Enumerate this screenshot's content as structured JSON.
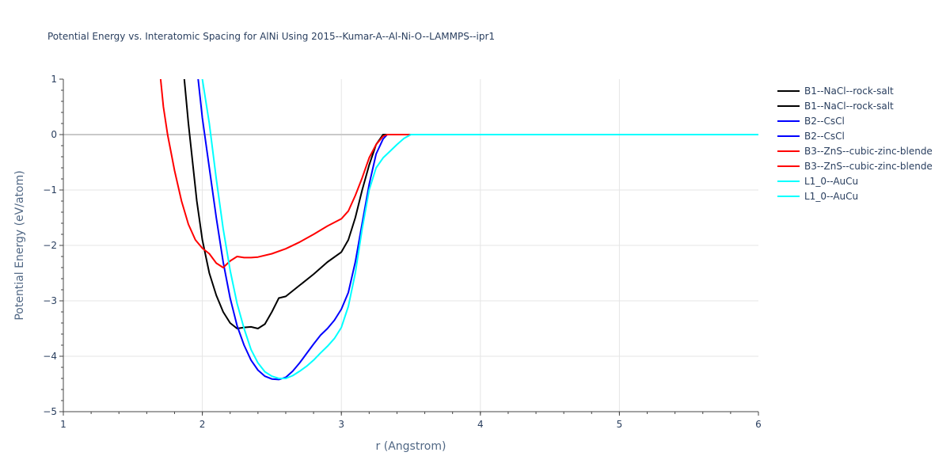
{
  "title": "Potential Energy vs. Interatomic Spacing for AlNi Using 2015--Kumar-A--Al-Ni-O--LAMMPS--ipr1",
  "chart_data": {
    "type": "line",
    "title": "Potential Energy vs. Interatomic Spacing for AlNi Using 2015--Kumar-A--Al-Ni-O--LAMMPS--ipr1",
    "xlabel": "r (Angstrom)",
    "ylabel": "Potential Energy (eV/atom)",
    "xlim": [
      1,
      6
    ],
    "ylim": [
      -5,
      1
    ],
    "xticks": [
      "1",
      "2",
      "3",
      "4",
      "5",
      "6"
    ],
    "yticks": [
      "1",
      "0",
      "−1",
      "−2",
      "−3",
      "−4",
      "−5"
    ],
    "grid": true,
    "legend_position": "right",
    "series": [
      {
        "name": "B1--NaCl--rock-salt",
        "color": "#000000",
        "x": [
          1.87,
          1.9,
          1.93,
          1.96,
          2.0,
          2.05,
          2.1,
          2.15,
          2.2,
          2.25,
          2.3,
          2.35,
          2.4,
          2.45,
          2.5,
          2.55,
          2.6,
          2.7,
          2.8,
          2.9,
          3.0,
          3.05,
          3.1,
          3.15,
          3.2,
          3.25,
          3.3,
          3.33,
          3.35,
          3.4,
          3.5,
          3.6,
          4.0,
          5.0,
          6.0
        ],
        "y": [
          1.0,
          0.2,
          -0.5,
          -1.2,
          -1.9,
          -2.5,
          -2.9,
          -3.2,
          -3.4,
          -3.5,
          -3.48,
          -3.47,
          -3.5,
          -3.42,
          -3.2,
          -2.95,
          -2.92,
          -2.72,
          -2.52,
          -2.3,
          -2.12,
          -1.9,
          -1.5,
          -1.0,
          -0.55,
          -0.18,
          0.0,
          0.0,
          0.0,
          0.0,
          0.0,
          0.0,
          0.0,
          0.0,
          0.0
        ]
      },
      {
        "name": "B2--CsCl",
        "color": "#0000ff",
        "x": [
          1.97,
          2.0,
          2.05,
          2.1,
          2.15,
          2.2,
          2.25,
          2.3,
          2.35,
          2.4,
          2.45,
          2.5,
          2.55,
          2.6,
          2.65,
          2.7,
          2.75,
          2.8,
          2.85,
          2.9,
          2.95,
          3.0,
          3.05,
          3.1,
          3.15,
          3.2,
          3.25,
          3.3,
          3.33,
          3.35,
          3.4,
          3.5,
          4.0,
          5.0,
          6.0
        ],
        "y": [
          1.0,
          0.3,
          -0.6,
          -1.5,
          -2.3,
          -2.95,
          -3.45,
          -3.8,
          -4.07,
          -4.25,
          -4.36,
          -4.41,
          -4.42,
          -4.38,
          -4.27,
          -4.12,
          -3.95,
          -3.78,
          -3.62,
          -3.5,
          -3.35,
          -3.15,
          -2.85,
          -2.3,
          -1.6,
          -0.9,
          -0.35,
          -0.08,
          0.0,
          0.0,
          0.0,
          0.0,
          0.0,
          0.0,
          0.0
        ]
      },
      {
        "name": "B3--ZnS--cubic-zinc-blende",
        "color": "#ff0000",
        "x": [
          1.7,
          1.72,
          1.75,
          1.8,
          1.85,
          1.9,
          1.95,
          2.0,
          2.05,
          2.1,
          2.15,
          2.2,
          2.25,
          2.3,
          2.35,
          2.4,
          2.5,
          2.6,
          2.7,
          2.8,
          2.9,
          3.0,
          3.05,
          3.1,
          3.15,
          3.2,
          3.25,
          3.3,
          3.33,
          3.35,
          3.4,
          3.5,
          3.55
        ],
        "y": [
          1.0,
          0.5,
          0.0,
          -0.65,
          -1.2,
          -1.62,
          -1.9,
          -2.05,
          -2.15,
          -2.32,
          -2.4,
          -2.28,
          -2.2,
          -2.22,
          -2.22,
          -2.21,
          -2.15,
          -2.06,
          -1.94,
          -1.8,
          -1.65,
          -1.52,
          -1.38,
          -1.1,
          -0.78,
          -0.42,
          -0.18,
          -0.03,
          0.0,
          0.0,
          0.0,
          0.0,
          0.0
        ]
      },
      {
        "name": "L1_0--AuCu",
        "color": "#00ffff",
        "x": [
          2.0,
          2.05,
          2.1,
          2.15,
          2.2,
          2.25,
          2.3,
          2.35,
          2.4,
          2.45,
          2.5,
          2.55,
          2.6,
          2.65,
          2.7,
          2.75,
          2.8,
          2.85,
          2.9,
          2.95,
          3.0,
          3.05,
          3.1,
          3.15,
          3.2,
          3.25,
          3.3,
          3.35,
          3.4,
          3.45,
          3.5,
          3.55,
          4.0,
          5.0,
          6.0
        ],
        "y": [
          1.0,
          0.2,
          -0.8,
          -1.7,
          -2.45,
          -3.05,
          -3.5,
          -3.88,
          -4.12,
          -4.28,
          -4.36,
          -4.4,
          -4.4,
          -4.35,
          -4.27,
          -4.18,
          -4.07,
          -3.94,
          -3.82,
          -3.68,
          -3.48,
          -3.1,
          -2.5,
          -1.7,
          -1.0,
          -0.6,
          -0.42,
          -0.3,
          -0.18,
          -0.07,
          0.0,
          0.0,
          0.0,
          0.0,
          0.0
        ]
      }
    ],
    "legend": [
      {
        "name": "B1--NaCl--rock-salt",
        "color": "#000000"
      },
      {
        "name": "B1--NaCl--rock-salt",
        "color": "#000000"
      },
      {
        "name": "B2--CsCl",
        "color": "#0000ff"
      },
      {
        "name": "B2--CsCl",
        "color": "#0000ff"
      },
      {
        "name": "B3--ZnS--cubic-zinc-blende",
        "color": "#ff0000"
      },
      {
        "name": "B3--ZnS--cubic-zinc-blende",
        "color": "#ff0000"
      },
      {
        "name": "L1_0--AuCu",
        "color": "#00ffff"
      },
      {
        "name": "L1_0--AuCu",
        "color": "#00ffff"
      }
    ]
  }
}
